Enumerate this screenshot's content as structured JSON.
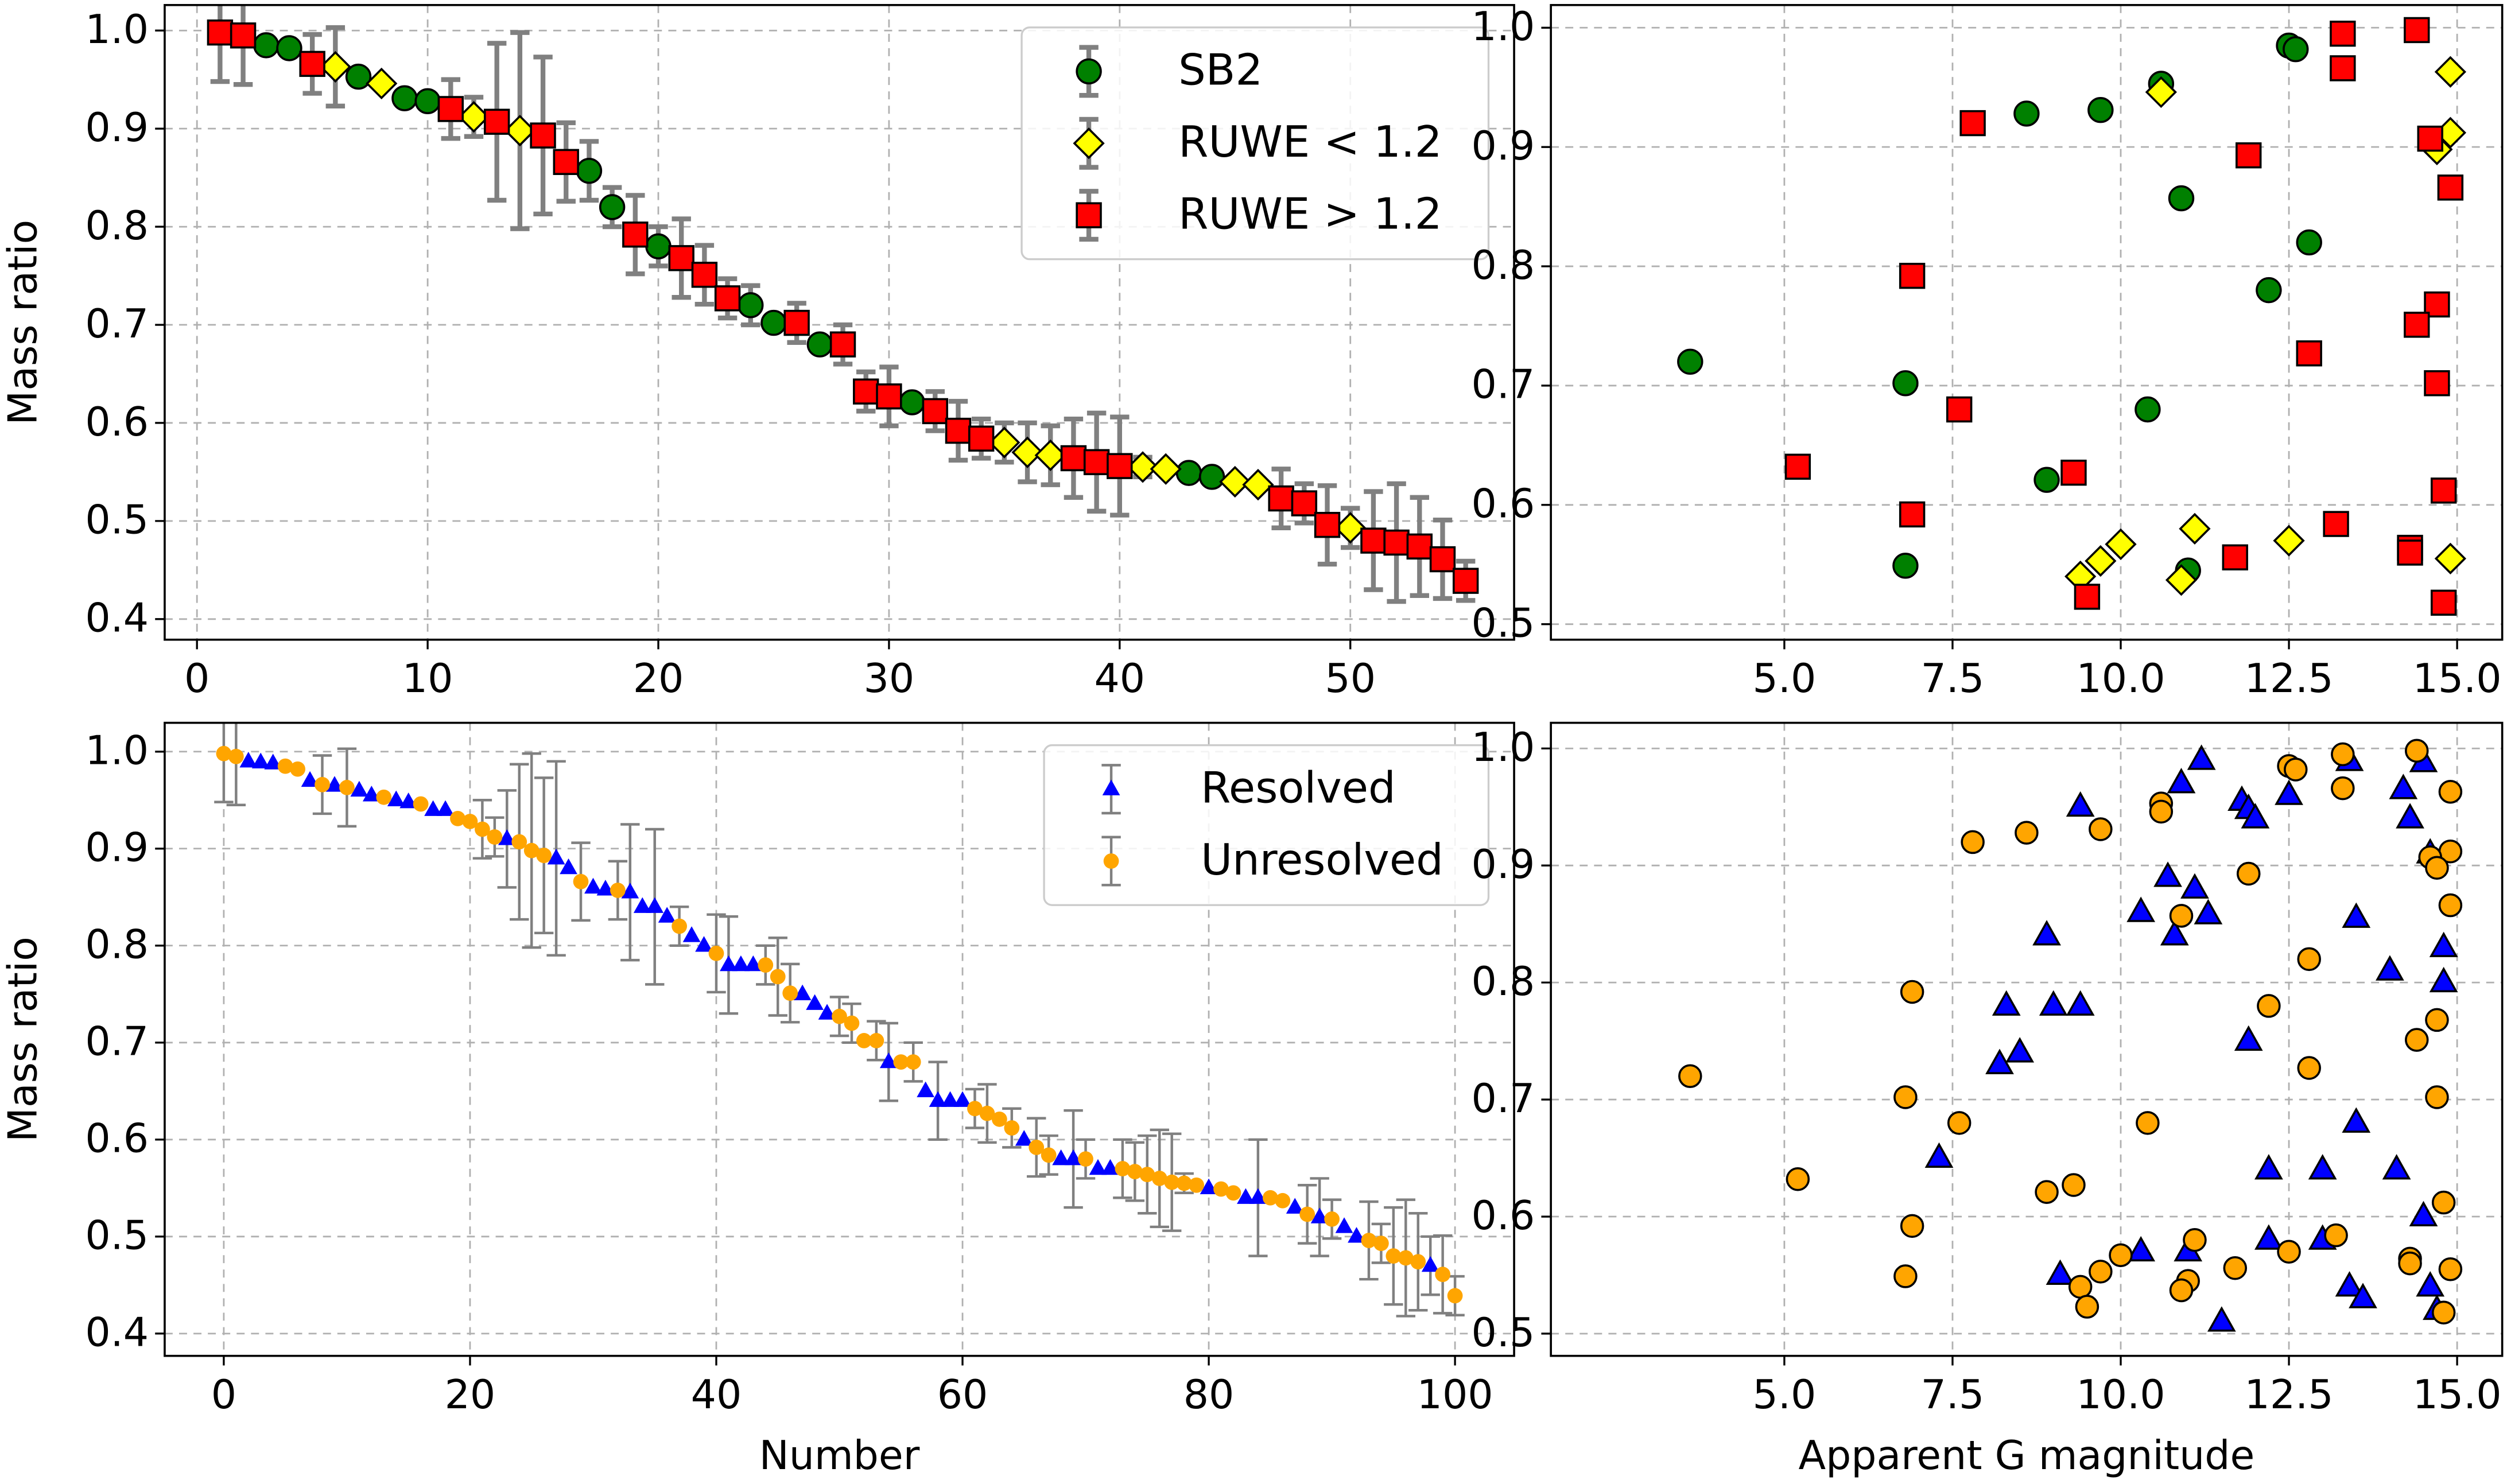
{
  "chart_data": [
    {
      "type": "scatter",
      "ylabel": "Mass ratio",
      "xlim": [
        -1.4,
        57.1
      ],
      "ylim": [
        0.379,
        1.026
      ],
      "xticks": [
        0,
        10,
        20,
        30,
        40,
        50
      ],
      "yticks": [
        0.4,
        0.5,
        0.6,
        0.7,
        0.8,
        0.9,
        {
          "value": 1,
          "label": "1.0"
        }
      ],
      "grid": true,
      "legend": "upper right",
      "series": [
        {
          "name": "SB2",
          "color": "#008000",
          "edgecolor": "#000000",
          "marker": "o",
          "x": [
            3,
            4,
            7,
            9,
            10,
            17,
            18,
            20,
            24,
            25,
            27,
            31,
            43,
            44
          ],
          "values": [
            0.985,
            0.982,
            0.953,
            0.931,
            0.928,
            0.857,
            0.82,
            0.78,
            0.72,
            0.702,
            0.68,
            0.621,
            0.549,
            0.545
          ],
          "errors": [
            null,
            null,
            null,
            null,
            null,
            0.03,
            0.02,
            0.02,
            0.02,
            null,
            null,
            null,
            null,
            null
          ]
        },
        {
          "name": "RUWE < 1.2",
          "color": "#ffff00",
          "edgecolor": "#000000",
          "marker": "D",
          "x": [
            6,
            8,
            12,
            14,
            35,
            36,
            37,
            41,
            42,
            45,
            46,
            50
          ],
          "values": [
            0.963,
            0.946,
            0.912,
            0.898,
            0.58,
            0.57,
            0.567,
            0.555,
            0.553,
            0.54,
            0.537,
            0.493
          ],
          "errors": [
            0.04,
            null,
            0.02,
            0.1,
            0.02,
            0.03,
            0.03,
            0.01,
            null,
            null,
            null,
            0.02
          ]
        },
        {
          "name": "RUWE > 1.2",
          "color": "#ff0000",
          "edgecolor": "#000000",
          "marker": "s",
          "x": [
            1,
            2,
            5,
            11,
            13,
            15,
            16,
            19,
            21,
            22,
            23,
            26,
            28,
            29,
            30,
            32,
            33,
            34,
            38,
            39,
            40,
            47,
            48,
            49,
            51,
            52,
            53,
            54,
            55
          ],
          "values": [
            0.998,
            0.995,
            0.966,
            0.92,
            0.907,
            0.893,
            0.866,
            0.792,
            0.768,
            0.751,
            0.727,
            0.702,
            0.68,
            0.632,
            0.627,
            0.612,
            0.592,
            0.584,
            0.564,
            0.56,
            0.556,
            0.523,
            0.518,
            0.496,
            0.48,
            0.478,
            0.474,
            0.461,
            0.439
          ],
          "errors": [
            0.05,
            0.05,
            0.03,
            0.03,
            0.08,
            0.08,
            0.04,
            0.04,
            0.04,
            0.03,
            0.02,
            0.02,
            0.02,
            0.02,
            0.03,
            0.02,
            0.03,
            0.02,
            0.04,
            0.05,
            0.05,
            0.03,
            0.02,
            0.04,
            0.05,
            0.06,
            0.05,
            0.04,
            0.02
          ]
        }
      ]
    },
    {
      "type": "scatter",
      "xlim": [
        1.53,
        15.67
      ],
      "ylim": [
        0.487,
        1.019
      ],
      "xticks": [
        {
          "value": 5,
          "label": "5.0"
        },
        7.5,
        {
          "value": 10,
          "label": "10.0"
        },
        12.5,
        {
          "value": 15,
          "label": "15.0"
        }
      ],
      "yticks": [
        0.5,
        0.6,
        0.7,
        0.8,
        0.9,
        {
          "value": 1,
          "label": "1.0"
        }
      ],
      "grid": true,
      "series": [
        {
          "color": "#008000",
          "edgecolor": "#000000",
          "marker": "o",
          "x": [
            12.5,
            12.6,
            10.6,
            9.7,
            8.6,
            10.9,
            12.8,
            12.2,
            3.6,
            6.8,
            10.4,
            8.9,
            6.8,
            11.0
          ],
          "values": [
            0.985,
            0.982,
            0.953,
            0.931,
            0.928,
            0.857,
            0.82,
            0.78,
            0.72,
            0.702,
            0.68,
            0.621,
            0.549,
            0.545
          ]
        },
        {
          "color": "#ffff00",
          "edgecolor": "#000000",
          "marker": "D",
          "x": [
            14.9,
            10.6,
            14.9,
            14.7,
            11.1,
            12.5,
            10.0,
            14.9,
            9.7,
            9.4,
            10.9
          ],
          "values": [
            0.963,
            0.946,
            0.912,
            0.898,
            0.58,
            0.57,
            0.567,
            0.555,
            0.553,
            0.54,
            0.537
          ]
        },
        {
          "color": "#ff0000",
          "edgecolor": "#000000",
          "marker": "s",
          "x": [
            14.4,
            13.3,
            13.3,
            7.8,
            14.6,
            11.9,
            14.9,
            6.9,
            14.7,
            14.4,
            12.8,
            14.7,
            7.6,
            5.2,
            9.3,
            14.8,
            6.9,
            13.2,
            14.3,
            14.3,
            11.7,
            9.5,
            14.8
          ],
          "values": [
            0.998,
            0.995,
            0.966,
            0.92,
            0.907,
            0.893,
            0.866,
            0.792,
            0.768,
            0.751,
            0.727,
            0.702,
            0.68,
            0.632,
            0.627,
            0.612,
            0.592,
            0.584,
            0.564,
            0.56,
            0.556,
            0.523,
            0.518
          ]
        }
      ]
    },
    {
      "type": "scatter",
      "ylabel": "Mass ratio",
      "xlabel": "Number",
      "xlim": [
        -4.8,
        104.8
      ],
      "ylim": [
        0.377,
        1.0297
      ],
      "xticks": [
        0,
        20,
        40,
        60,
        80,
        100
      ],
      "yticks": [
        0.4,
        0.5,
        0.6,
        0.7,
        0.8,
        0.9,
        {
          "value": 1,
          "label": "1.0"
        }
      ],
      "grid": true,
      "legend": "upper right",
      "series": [
        {
          "name": "Resolved",
          "color": "#0000ff",
          "marker": "^",
          "x": [
            2,
            3,
            4,
            7,
            9,
            11,
            12,
            14,
            15,
            17,
            18,
            23,
            27,
            28,
            30,
            31,
            33,
            34,
            35,
            36,
            38,
            39,
            41,
            42,
            43,
            47,
            48,
            49,
            54,
            57,
            58,
            59,
            60,
            65,
            68,
            69,
            71,
            72,
            80,
            83,
            84,
            87,
            89,
            91,
            92,
            98
          ],
          "values": [
            0.99,
            0.989,
            0.988,
            0.97,
            0.965,
            0.96,
            0.955,
            0.95,
            0.948,
            0.94,
            0.94,
            0.91,
            0.89,
            0.88,
            0.86,
            0.858,
            0.855,
            0.84,
            0.84,
            0.83,
            0.81,
            0.8,
            0.78,
            0.78,
            0.78,
            0.75,
            0.74,
            0.73,
            0.68,
            0.65,
            0.64,
            0.64,
            0.64,
            0.6,
            0.58,
            0.58,
            0.57,
            0.57,
            0.55,
            0.54,
            0.54,
            0.53,
            0.52,
            0.51,
            0.5,
            0.47
          ],
          "errors": [
            null,
            null,
            null,
            null,
            null,
            null,
            null,
            null,
            null,
            null,
            null,
            0.05,
            0.1,
            null,
            null,
            null,
            0.07,
            null,
            0.08,
            null,
            null,
            null,
            0.05,
            null,
            null,
            null,
            null,
            null,
            0.04,
            null,
            0.04,
            null,
            null,
            null,
            null,
            0.05,
            null,
            null,
            null,
            null,
            0.06,
            null,
            0.04,
            null,
            null,
            0.03
          ]
        },
        {
          "name": "Unresolved",
          "color": "#ffa500",
          "marker": "o",
          "x": [
            0,
            1,
            5,
            6,
            8,
            10,
            13,
            16,
            19,
            20,
            21,
            22,
            24,
            25,
            26,
            29,
            32,
            37,
            40,
            44,
            45,
            46,
            50,
            51,
            52,
            53,
            55,
            56,
            61,
            62,
            63,
            64,
            66,
            67,
            70,
            73,
            74,
            75,
            76,
            77,
            78,
            79,
            81,
            82,
            85,
            86,
            88,
            90,
            93,
            94,
            95,
            96,
            97,
            99,
            100
          ],
          "values": [
            0.998,
            0.995,
            0.985,
            0.982,
            0.966,
            0.963,
            0.953,
            0.946,
            0.931,
            0.928,
            0.92,
            0.912,
            0.907,
            0.898,
            0.893,
            0.866,
            0.857,
            0.82,
            0.792,
            0.78,
            0.768,
            0.751,
            0.727,
            0.72,
            0.702,
            0.702,
            0.68,
            0.68,
            0.632,
            0.627,
            0.621,
            0.612,
            0.592,
            0.584,
            0.58,
            0.57,
            0.567,
            0.564,
            0.56,
            0.556,
            0.555,
            0.553,
            0.549,
            0.545,
            0.54,
            0.537,
            0.523,
            0.518,
            0.496,
            0.493,
            0.48,
            0.478,
            0.474,
            0.461,
            0.439
          ],
          "errors": [
            0.05,
            0.05,
            null,
            null,
            0.03,
            0.04,
            null,
            null,
            null,
            null,
            0.03,
            0.02,
            0.08,
            0.1,
            0.08,
            0.04,
            0.03,
            0.02,
            0.04,
            0.02,
            0.04,
            0.03,
            0.02,
            0.02,
            null,
            0.02,
            null,
            0.02,
            0.02,
            0.03,
            null,
            0.02,
            0.03,
            0.02,
            0.02,
            0.03,
            0.03,
            0.04,
            0.05,
            0.05,
            0.01,
            null,
            null,
            null,
            null,
            null,
            0.03,
            0.02,
            0.04,
            0.02,
            0.05,
            0.06,
            0.05,
            0.04,
            0.02
          ]
        }
      ]
    },
    {
      "type": "scatter",
      "xlabel": "Apparent G magnitude",
      "xlim": [
        1.53,
        15.67
      ],
      "ylim": [
        0.481,
        1.0219
      ],
      "xticks": [
        {
          "value": 5,
          "label": "5.0"
        },
        7.5,
        {
          "value": 10,
          "label": "10.0"
        },
        12.5,
        {
          "value": 15,
          "label": "15.0"
        }
      ],
      "yticks": [
        0.5,
        0.6,
        0.7,
        0.8,
        0.9,
        {
          "value": 1,
          "label": "1.0"
        }
      ],
      "grid": true,
      "series": [
        {
          "color": "#0000ff",
          "edgecolor": "#000000",
          "marker": "^",
          "x": [
            11.2,
            13.4,
            14.5,
            10.9,
            14.2,
            12.5,
            11.8,
            9.4,
            11.9,
            12.0,
            14.3,
            14.6,
            10.7,
            11.1,
            10.3,
            11.3,
            13.5,
            8.9,
            10.8,
            14.8,
            14.0,
            14.8,
            8.3,
            9.0,
            9.4,
            11.9,
            8.5,
            8.2,
            13.5,
            7.3,
            12.2,
            13.0,
            14.1,
            14.5,
            12.2,
            13.0,
            10.3,
            11.0,
            9.1,
            13.4,
            14.6,
            13.6,
            14.7,
            11.5
          ],
          "values": [
            0.99,
            0.989,
            0.988,
            0.97,
            0.965,
            0.96,
            0.955,
            0.95,
            0.948,
            0.94,
            0.94,
            0.91,
            0.89,
            0.88,
            0.86,
            0.858,
            0.855,
            0.84,
            0.84,
            0.83,
            0.81,
            0.8,
            0.78,
            0.78,
            0.78,
            0.75,
            0.74,
            0.73,
            0.68,
            0.65,
            0.64,
            0.64,
            0.64,
            0.6,
            0.58,
            0.58,
            0.57,
            0.57,
            0.55,
            0.54,
            0.54,
            0.53,
            0.52,
            0.51
          ]
        },
        {
          "color": "#ffa500",
          "edgecolor": "#000000",
          "marker": "o",
          "x": [
            14.4,
            13.3,
            12.5,
            12.6,
            13.3,
            14.9,
            10.6,
            10.6,
            9.7,
            8.6,
            7.8,
            14.9,
            14.6,
            14.7,
            11.9,
            14.9,
            10.9,
            12.8,
            6.9,
            12.2,
            14.7,
            14.4,
            12.8,
            3.6,
            6.8,
            14.7,
            10.4,
            7.6,
            5.2,
            9.3,
            8.9,
            14.8,
            6.9,
            13.2,
            11.1,
            12.5,
            10.0,
            14.3,
            14.3,
            11.7,
            14.9,
            9.7,
            6.8,
            11.0,
            9.4,
            10.9,
            9.5,
            14.8
          ],
          "values": [
            0.998,
            0.995,
            0.985,
            0.982,
            0.966,
            0.963,
            0.953,
            0.946,
            0.931,
            0.928,
            0.92,
            0.912,
            0.907,
            0.898,
            0.893,
            0.866,
            0.857,
            0.82,
            0.792,
            0.78,
            0.768,
            0.751,
            0.727,
            0.72,
            0.702,
            0.702,
            0.68,
            0.68,
            0.632,
            0.627,
            0.621,
            0.612,
            0.592,
            0.584,
            0.58,
            0.57,
            0.567,
            0.564,
            0.56,
            0.556,
            0.555,
            0.553,
            0.549,
            0.545,
            0.54,
            0.537,
            0.523,
            0.518
          ]
        }
      ]
    }
  ]
}
